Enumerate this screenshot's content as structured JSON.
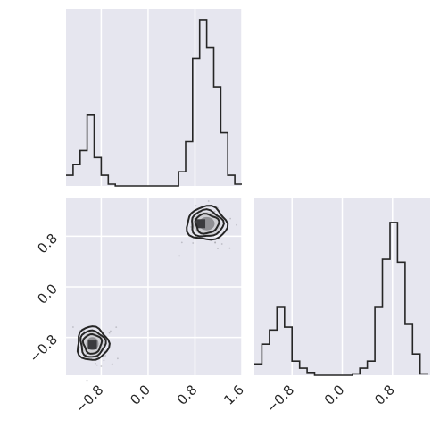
{
  "colors": {
    "panel_bg": "#e6e6ef",
    "grid": "#ffffff",
    "line": "#262626",
    "tick_text": "#262626",
    "point_fill": "#9a9aa2",
    "density_fill_light": "#cfcfd3",
    "density_fill_mid": "#8f8f93",
    "density_fill_dark": "#3b3b3e"
  },
  "chart_data": [
    {
      "panel": "hist-param1",
      "type": "bar",
      "style": "step-histogram",
      "bin_edges": [
        -1.4,
        -1.28,
        -1.16,
        -1.04,
        -0.92,
        -0.8,
        -0.68,
        -0.56,
        -0.44,
        -0.32,
        -0.2,
        -0.08,
        0.04,
        0.16,
        0.28,
        0.4,
        0.52,
        0.64,
        0.76,
        0.88,
        1.0,
        1.12,
        1.24,
        1.36,
        1.48,
        1.6
      ],
      "values": [
        6,
        12,
        20,
        40,
        16,
        6,
        1,
        0,
        0,
        0,
        0,
        0,
        0,
        0,
        0,
        0,
        8,
        25,
        72,
        94,
        78,
        56,
        30,
        6,
        1
      ],
      "xlim": [
        -1.4,
        1.6
      ],
      "ylim": [
        0,
        100
      ],
      "xgrid": [
        -0.8,
        0.0,
        0.8,
        1.6
      ],
      "grid": true
    },
    {
      "panel": "density-2d",
      "type": "scatter",
      "style": "2d-density-contours",
      "xlim": [
        -1.4,
        1.6
      ],
      "ylim": [
        -1.4,
        1.4
      ],
      "xgrid": [
        -0.8,
        0.0,
        0.8,
        1.6
      ],
      "ygrid": [
        -0.8,
        0.0,
        0.8
      ],
      "x_tick_labels": [
        "−0.8",
        "0.0",
        "0.8",
        "1.6"
      ],
      "y_tick_labels": [
        "−0.8",
        "0.0",
        "0.8"
      ],
      "clusters": [
        {
          "center": [
            1.0,
            1.0
          ],
          "spread": [
            0.18,
            0.14
          ],
          "peak": [
            0.9,
            1.0
          ]
        },
        {
          "center": [
            -0.95,
            -0.9
          ],
          "spread": [
            0.14,
            0.14
          ],
          "peak": [
            -0.95,
            -0.92
          ]
        }
      ],
      "grid": true
    },
    {
      "panel": "hist-param2",
      "type": "bar",
      "style": "step-histogram",
      "bin_edges": [
        -1.4,
        -1.28,
        -1.16,
        -1.04,
        -0.92,
        -0.8,
        -0.68,
        -0.56,
        -0.44,
        -0.32,
        -0.2,
        -0.08,
        0.04,
        0.16,
        0.28,
        0.4,
        0.52,
        0.64,
        0.76,
        0.88,
        1.0,
        1.12,
        1.24,
        1.36
      ],
      "values": [
        8,
        22,
        32,
        48,
        34,
        10,
        5,
        2,
        0,
        0,
        0,
        0,
        0,
        1,
        5,
        10,
        48,
        82,
        108,
        80,
        36,
        15,
        1
      ],
      "xlim": [
        -1.4,
        1.4
      ],
      "ylim": [
        0,
        125
      ],
      "xgrid": [
        -0.8,
        0.0,
        0.8
      ],
      "x_tick_labels": [
        "−0.8",
        "0.0",
        "0.8"
      ],
      "grid": true
    }
  ]
}
